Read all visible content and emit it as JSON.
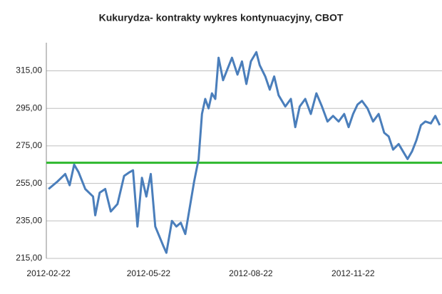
{
  "chart_data": {
    "type": "line",
    "title": "Kukurydza- kontrakty wykres kontynuacyjny, CBOT",
    "x": [
      "2012-02-22",
      "2012-03-01",
      "2012-03-08",
      "2012-03-12",
      "2012-03-16",
      "2012-03-20",
      "2012-03-26",
      "2012-04-02",
      "2012-04-04",
      "2012-04-08",
      "2012-04-13",
      "2012-04-18",
      "2012-04-24",
      "2012-04-30",
      "2012-05-05",
      "2012-05-08",
      "2012-05-12",
      "2012-05-16",
      "2012-05-20",
      "2012-05-24",
      "2012-05-28",
      "2012-06-04",
      "2012-06-07",
      "2012-06-12",
      "2012-06-16",
      "2012-06-20",
      "2012-06-24",
      "2012-06-28",
      "2012-07-02",
      "2012-07-06",
      "2012-07-09",
      "2012-07-12",
      "2012-07-15",
      "2012-07-18",
      "2012-07-21",
      "2012-07-24",
      "2012-07-28",
      "2012-08-01",
      "2012-08-05",
      "2012-08-10",
      "2012-08-14",
      "2012-08-18",
      "2012-08-22",
      "2012-08-27",
      "2012-08-30",
      "2012-09-04",
      "2012-09-08",
      "2012-09-12",
      "2012-09-16",
      "2012-09-22",
      "2012-09-27",
      "2012-10-01",
      "2012-10-05",
      "2012-10-10",
      "2012-10-15",
      "2012-10-20",
      "2012-10-25",
      "2012-10-30",
      "2012-11-04",
      "2012-11-09",
      "2012-11-14",
      "2012-11-18",
      "2012-11-22",
      "2012-11-26",
      "2012-11-30",
      "2012-12-05",
      "2012-12-10",
      "2012-12-15",
      "2012-12-20",
      "2012-12-24",
      "2012-12-28",
      "2013-01-02",
      "2013-01-06",
      "2013-01-10",
      "2013-01-14",
      "2013-01-18",
      "2013-01-22",
      "2013-01-26",
      "2013-01-31",
      "2013-02-04",
      "2013-02-08"
    ],
    "series": [
      {
        "color": "#4a7ebb",
        "values": [
          252,
          256,
          260,
          254,
          265,
          261,
          252,
          248,
          238,
          250,
          252,
          240,
          244,
          259,
          261,
          262,
          232,
          258,
          248,
          260,
          232,
          222,
          218,
          235,
          232,
          234,
          228,
          242,
          256,
          268,
          292,
          300,
          295,
          303,
          300,
          322,
          310,
          316,
          322,
          313,
          320,
          308,
          320,
          325,
          318,
          312,
          305,
          312,
          302,
          296,
          300,
          285,
          296,
          300,
          292,
          303,
          296,
          288,
          291,
          288,
          292,
          285,
          292,
          297,
          299,
          295,
          288,
          292,
          282,
          280,
          273,
          276,
          272,
          268,
          272,
          278,
          286,
          288,
          287,
          291,
          286
        ]
      }
    ],
    "reference_line": {
      "value": 266,
      "color": "#2db82d"
    },
    "xlim": [
      "2012-02-20",
      "2013-02-10"
    ],
    "xticks": [
      "2012-02-22",
      "2012-05-22",
      "2012-08-22",
      "2012-11-22"
    ],
    "ylim": [
      215,
      330
    ],
    "yticks": [
      {
        "value": 215,
        "label": "215,00"
      },
      {
        "value": 235,
        "label": "235,00"
      },
      {
        "value": 255,
        "label": "255,00"
      },
      {
        "value": 275,
        "label": "275,00"
      },
      {
        "value": 295,
        "label": "295,00"
      },
      {
        "value": 315,
        "label": "315,00"
      }
    ],
    "grid": true
  }
}
